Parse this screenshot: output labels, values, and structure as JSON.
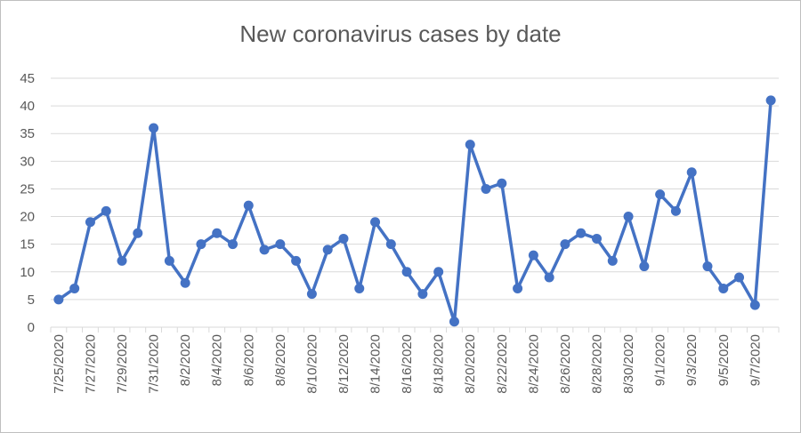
{
  "chart_data": {
    "type": "line",
    "title": "New coronavirus cases by date",
    "xlabel": "",
    "ylabel": "",
    "ylim": [
      0,
      45
    ],
    "yticks": [
      0,
      5,
      10,
      15,
      20,
      25,
      30,
      35,
      40,
      45
    ],
    "grid": true,
    "color": "#4472C4",
    "x": [
      "7/25/2020",
      "7/26/2020",
      "7/27/2020",
      "7/28/2020",
      "7/29/2020",
      "7/30/2020",
      "7/31/2020",
      "8/1/2020",
      "8/2/2020",
      "8/3/2020",
      "8/4/2020",
      "8/5/2020",
      "8/6/2020",
      "8/7/2020",
      "8/8/2020",
      "8/9/2020",
      "8/10/2020",
      "8/11/2020",
      "8/12/2020",
      "8/13/2020",
      "8/14/2020",
      "8/15/2020",
      "8/16/2020",
      "8/17/2020",
      "8/18/2020",
      "8/19/2020",
      "8/20/2020",
      "8/21/2020",
      "8/22/2020",
      "8/23/2020",
      "8/24/2020",
      "8/25/2020",
      "8/26/2020",
      "8/27/2020",
      "8/28/2020",
      "8/29/2020",
      "8/30/2020",
      "8/31/2020",
      "9/1/2020",
      "9/2/2020",
      "9/3/2020",
      "9/4/2020",
      "9/5/2020",
      "9/6/2020",
      "9/7/2020",
      "9/8/2020"
    ],
    "xtick_labels": [
      "7/25/2020",
      "7/27/2020",
      "7/29/2020",
      "7/31/2020",
      "8/2/2020",
      "8/4/2020",
      "8/6/2020",
      "8/8/2020",
      "8/10/2020",
      "8/12/2020",
      "8/14/2020",
      "8/16/2020",
      "8/18/2020",
      "8/20/2020",
      "8/22/2020",
      "8/24/2020",
      "8/26/2020",
      "8/28/2020",
      "8/30/2020",
      "9/1/2020",
      "9/3/2020",
      "9/5/2020",
      "9/7/2020"
    ],
    "values": [
      5,
      7,
      19,
      21,
      12,
      17,
      36,
      12,
      8,
      15,
      17,
      15,
      22,
      14,
      15,
      12,
      6,
      14,
      16,
      7,
      19,
      15,
      10,
      6,
      10,
      1,
      33,
      25,
      26,
      7,
      13,
      9,
      15,
      17,
      16,
      12,
      20,
      11,
      24,
      21,
      28,
      11,
      7,
      9,
      4,
      41
    ]
  }
}
